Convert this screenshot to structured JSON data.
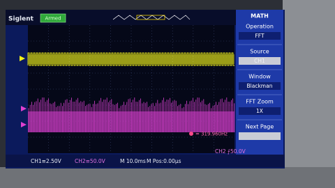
{
  "header": {
    "brand": "Siglent",
    "status": "Armed"
  },
  "menu": {
    "title": "MATH",
    "items": [
      {
        "label": "Operation",
        "value": "FFT"
      },
      {
        "label": "Source",
        "value": "CH1"
      },
      {
        "label": "Window",
        "value": "Blackman"
      },
      {
        "label": "FFT Zoom",
        "value": "1X"
      },
      {
        "label": "Next Page"
      }
    ]
  },
  "cursor": "= 319.960Hz",
  "status_bar": {
    "ch1": "CH1≡2.50V",
    "ch2": "CH2≡50.0V",
    "timebase": "M 10.0ms",
    "position": "M Pos:0.00µs",
    "trigger": "CH2 ⨍50.0V"
  }
}
